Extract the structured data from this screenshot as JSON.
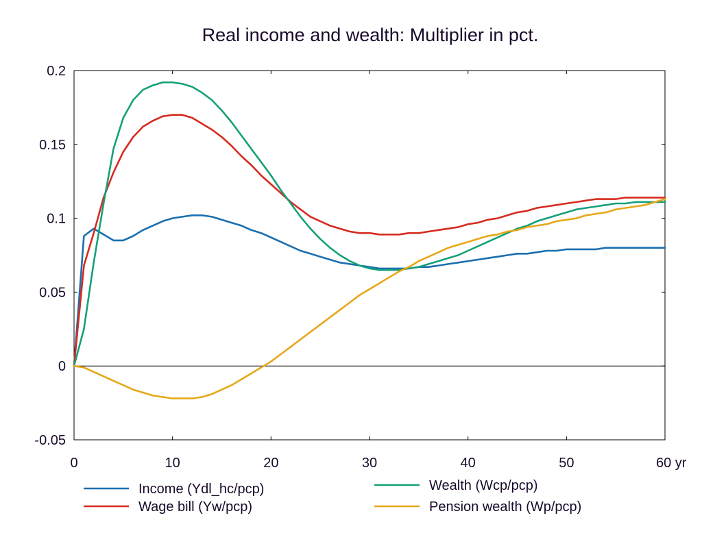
{
  "chart_data": {
    "type": "line",
    "title": "Real income and wealth: Multiplier in pct.",
    "xlabel": "",
    "ylabel": "",
    "x_unit": "yr",
    "xlim": [
      0,
      60
    ],
    "ylim": [
      -0.05,
      0.2
    ],
    "xticks": [
      0,
      10,
      20,
      30,
      40,
      50,
      60
    ],
    "xtick_labels": [
      "0",
      "10",
      "20",
      "30",
      "40",
      "50",
      "60 yr"
    ],
    "yticks": [
      -0.05,
      0,
      0.05,
      0.1,
      0.15,
      0.2
    ],
    "ytick_labels": [
      "-0.05",
      "0",
      "0.05",
      "0.1",
      "0.15",
      "0.2"
    ],
    "grid": false,
    "zero_line": true,
    "legend_position": "bottom",
    "x": [
      0,
      1,
      2,
      3,
      4,
      5,
      6,
      7,
      8,
      9,
      10,
      11,
      12,
      13,
      14,
      15,
      16,
      17,
      18,
      19,
      20,
      21,
      22,
      23,
      24,
      25,
      26,
      27,
      28,
      29,
      30,
      31,
      32,
      33,
      34,
      35,
      36,
      37,
      38,
      39,
      40,
      41,
      42,
      43,
      44,
      45,
      46,
      47,
      48,
      49,
      50,
      51,
      52,
      53,
      54,
      55,
      56,
      57,
      58,
      59,
      60
    ],
    "series": [
      {
        "name": "Income (Ydl_hc/pcp)",
        "color": "#1a6fb0",
        "values": [
          0,
          0.088,
          0.093,
          0.089,
          0.085,
          0.085,
          0.088,
          0.092,
          0.095,
          0.098,
          0.1,
          0.101,
          0.102,
          0.102,
          0.101,
          0.099,
          0.097,
          0.095,
          0.092,
          0.09,
          0.087,
          0.084,
          0.081,
          0.078,
          0.076,
          0.074,
          0.072,
          0.07,
          0.069,
          0.068,
          0.067,
          0.066,
          0.066,
          0.066,
          0.066,
          0.067,
          0.067,
          0.068,
          0.069,
          0.07,
          0.071,
          0.072,
          0.073,
          0.074,
          0.075,
          0.076,
          0.076,
          0.077,
          0.078,
          0.078,
          0.079,
          0.079,
          0.079,
          0.079,
          0.08,
          0.08,
          0.08,
          0.08,
          0.08,
          0.08,
          0.08
        ]
      },
      {
        "name": "Wage bill (Yw/pcp)",
        "color": "#d62b1f",
        "values": [
          0,
          0.068,
          0.09,
          0.114,
          0.131,
          0.145,
          0.155,
          0.162,
          0.166,
          0.169,
          0.17,
          0.17,
          0.168,
          0.164,
          0.16,
          0.155,
          0.149,
          0.142,
          0.136,
          0.129,
          0.123,
          0.117,
          0.111,
          0.106,
          0.101,
          0.098,
          0.095,
          0.093,
          0.091,
          0.09,
          0.09,
          0.089,
          0.089,
          0.089,
          0.09,
          0.09,
          0.091,
          0.092,
          0.093,
          0.094,
          0.096,
          0.097,
          0.099,
          0.1,
          0.102,
          0.104,
          0.105,
          0.107,
          0.108,
          0.109,
          0.11,
          0.111,
          0.112,
          0.113,
          0.113,
          0.113,
          0.114,
          0.114,
          0.114,
          0.114,
          0.114
        ]
      },
      {
        "name": "Wealth (Wcp/pcp)",
        "color": "#15a07a",
        "values": [
          0,
          0.025,
          0.07,
          0.11,
          0.147,
          0.168,
          0.18,
          0.187,
          0.19,
          0.192,
          0.192,
          0.191,
          0.189,
          0.185,
          0.18,
          0.173,
          0.165,
          0.156,
          0.147,
          0.138,
          0.129,
          0.119,
          0.11,
          0.101,
          0.093,
          0.086,
          0.08,
          0.075,
          0.071,
          0.068,
          0.066,
          0.065,
          0.065,
          0.065,
          0.066,
          0.067,
          0.069,
          0.071,
          0.073,
          0.075,
          0.078,
          0.081,
          0.084,
          0.087,
          0.09,
          0.093,
          0.095,
          0.098,
          0.1,
          0.102,
          0.104,
          0.106,
          0.107,
          0.108,
          0.109,
          0.11,
          0.11,
          0.111,
          0.111,
          0.111,
          0.111
        ]
      },
      {
        "name": "Pension wealth (Wp/pcp)",
        "color": "#e6a817",
        "values": [
          0,
          -0.001,
          -0.004,
          -0.007,
          -0.01,
          -0.013,
          -0.016,
          -0.018,
          -0.02,
          -0.021,
          -0.022,
          -0.022,
          -0.022,
          -0.021,
          -0.019,
          -0.016,
          -0.013,
          -0.009,
          -0.005,
          -0.001,
          0.003,
          0.008,
          0.013,
          0.018,
          0.023,
          0.028,
          0.033,
          0.038,
          0.043,
          0.048,
          0.052,
          0.056,
          0.06,
          0.064,
          0.067,
          0.071,
          0.074,
          0.077,
          0.08,
          0.082,
          0.084,
          0.086,
          0.088,
          0.089,
          0.091,
          0.092,
          0.094,
          0.095,
          0.096,
          0.098,
          0.099,
          0.1,
          0.102,
          0.103,
          0.104,
          0.106,
          0.107,
          0.108,
          0.109,
          0.111,
          0.113
        ]
      }
    ]
  }
}
